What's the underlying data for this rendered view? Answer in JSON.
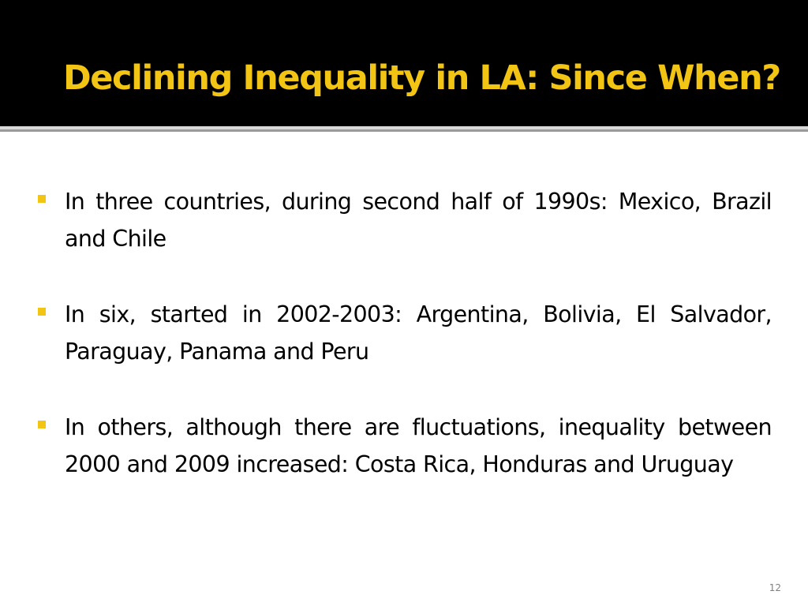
{
  "slide": {
    "title": "Declining Inequality in LA: Since When?",
    "bullets": [
      "In three countries, during second half of 1990s: Mexico, Brazil and Chile",
      "In six, started in 2002-2003: Argentina, Bolivia, El Salvador, Paraguay, Panama and Peru",
      "In others, although there are fluctuations, inequality between 2000 and 2009 increased: Costa Rica, Honduras and Uruguay"
    ],
    "slide_number": "12"
  },
  "colors": {
    "title_background": "#000000",
    "title_text": "#f2c413",
    "bullet_marker": "#f2c413",
    "body_text": "#000000",
    "divider": "#9a9a9a"
  }
}
